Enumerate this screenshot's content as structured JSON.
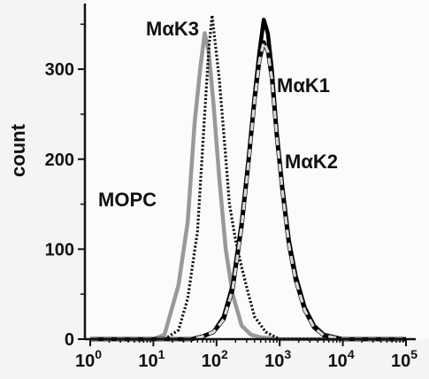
{
  "chart_data": {
    "type": "line",
    "title": "",
    "xlabel": "",
    "ylabel": "count",
    "x_scale": "log",
    "xlim": [
      1,
      100000
    ],
    "ylim": [
      0,
      370
    ],
    "x_ticks": [
      {
        "value": 1,
        "base": "10",
        "exp": "0"
      },
      {
        "value": 10,
        "base": "10",
        "exp": "1"
      },
      {
        "value": 100,
        "base": "10",
        "exp": "2"
      },
      {
        "value": 1000,
        "base": "10",
        "exp": "3"
      },
      {
        "value": 10000,
        "base": "10",
        "exp": "4"
      },
      {
        "value": 100000,
        "base": "10",
        "exp": "5"
      }
    ],
    "y_ticks": [
      {
        "value": 0,
        "label": "0"
      },
      {
        "value": 100,
        "label": "100"
      },
      {
        "value": 200,
        "label": "200"
      },
      {
        "value": 300,
        "label": "300"
      }
    ],
    "grid": false,
    "legend": "none",
    "series": [
      {
        "name": "MOPC",
        "color": "#999999",
        "style": "solid",
        "x": [
          1,
          10,
          15,
          25,
          35,
          45,
          55,
          65,
          75,
          90,
          110,
          140,
          180,
          250,
          350,
          500,
          1000,
          100000
        ],
        "y": [
          0,
          0,
          5,
          60,
          130,
          240,
          300,
          340,
          320,
          260,
          180,
          100,
          50,
          15,
          5,
          2,
          0,
          0
        ]
      },
      {
        "name": "MαK3",
        "color": "#111111",
        "style": "dotted",
        "x": [
          1,
          15,
          25,
          35,
          50,
          65,
          75,
          85,
          95,
          110,
          130,
          160,
          200,
          250,
          320,
          400,
          600,
          1000,
          100000
        ],
        "y": [
          0,
          0,
          10,
          45,
          120,
          250,
          320,
          360,
          330,
          290,
          230,
          150,
          110,
          80,
          50,
          25,
          8,
          0,
          0
        ]
      },
      {
        "name": "MαK1",
        "color": "#000000",
        "style": "solid",
        "x": [
          1,
          40,
          60,
          90,
          130,
          180,
          250,
          320,
          400,
          480,
          560,
          650,
          750,
          900,
          1100,
          1400,
          1800,
          2500,
          3500,
          5000,
          10000,
          100000
        ],
        "y": [
          0,
          0,
          3,
          8,
          25,
          60,
          130,
          200,
          270,
          320,
          355,
          340,
          300,
          230,
          170,
          110,
          70,
          35,
          15,
          5,
          0,
          0
        ]
      },
      {
        "name": "MαK2",
        "color": "#d9d9d9",
        "style": "dashed",
        "x": [
          1,
          40,
          60,
          90,
          130,
          180,
          250,
          320,
          400,
          480,
          560,
          650,
          750,
          900,
          1100,
          1400,
          1800,
          2500,
          3500,
          5000,
          10000,
          100000
        ],
        "y": [
          0,
          0,
          3,
          8,
          22,
          55,
          125,
          195,
          265,
          310,
          330,
          320,
          290,
          225,
          165,
          105,
          65,
          32,
          13,
          4,
          0,
          0
        ]
      }
    ]
  }
}
